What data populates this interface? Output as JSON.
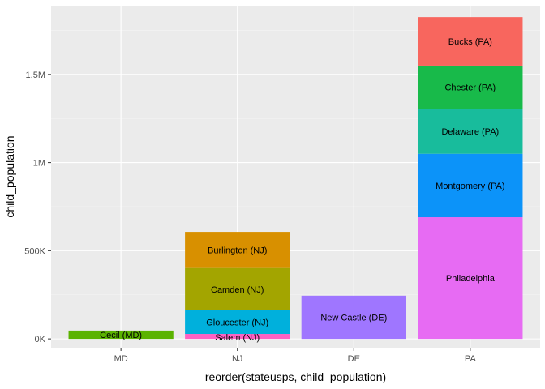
{
  "chart_data": {
    "type": "bar",
    "stacked": true,
    "xlabel": "reorder(stateusps, child_population)",
    "ylabel": "child_population",
    "categories": [
      "MD",
      "NJ",
      "DE",
      "PA"
    ],
    "ylim": [
      -50000,
      1890000
    ],
    "yticks": [
      {
        "value": 0,
        "label": "0K"
      },
      {
        "value": 500000,
        "label": "500K"
      },
      {
        "value": 1000000,
        "label": "1M"
      },
      {
        "value": 1500000,
        "label": "1.5M"
      }
    ],
    "grid": true,
    "legend": "none",
    "segments": [
      {
        "category": "MD",
        "label": "Cecil (MD)",
        "value": 47000,
        "color": "#5BB300"
      },
      {
        "category": "NJ",
        "label": "Salem (NJ)",
        "value": 28000,
        "color": "#FF61C3"
      },
      {
        "category": "NJ",
        "label": "Gloucester (NJ)",
        "value": 134000,
        "color": "#00B0DC"
      },
      {
        "category": "NJ",
        "label": "Camden (NJ)",
        "value": 240000,
        "color": "#A3A500"
      },
      {
        "category": "NJ",
        "label": "Burlington (NJ)",
        "value": 205000,
        "color": "#D89000"
      },
      {
        "category": "DE",
        "label": "New Castle (DE)",
        "value": 245000,
        "color": "#9F76FF"
      },
      {
        "category": "PA",
        "label": "Philadelphia",
        "value": 690000,
        "color": "#E76BF3"
      },
      {
        "category": "PA",
        "label": "Montgomery (PA)",
        "value": 360000,
        "color": "#0C93F9"
      },
      {
        "category": "PA",
        "label": "Delaware (PA)",
        "value": 255000,
        "color": "#18BC9C"
      },
      {
        "category": "PA",
        "label": "Chester (PA)",
        "value": 245000,
        "color": "#18BA4A"
      },
      {
        "category": "PA",
        "label": "Bucks (PA)",
        "value": 275000,
        "color": "#F8665E"
      }
    ],
    "colors": {
      "panel_background": "#EBEBEB",
      "grid_major": "#FFFFFF",
      "grid_minor": "#F5F5F5",
      "tick_text": "#4D4D4D",
      "tick_mark": "#333333"
    }
  }
}
